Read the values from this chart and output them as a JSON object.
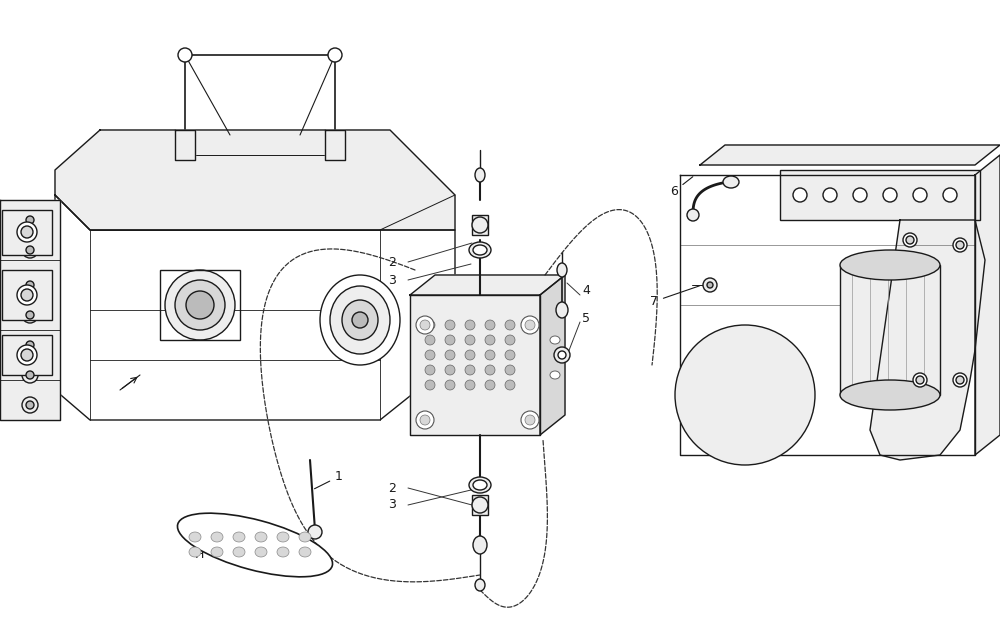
{
  "background_color": "#ffffff",
  "line_color": "#1a1a1a",
  "line_width": 1.0,
  "label_fontsize": 9,
  "figsize": [
    10.0,
    6.2
  ],
  "dpi": 100,
  "dashed_color": "#333333",
  "gray_fill": "#d8d8d8",
  "light_gray": "#eeeeee",
  "mid_gray": "#bbbbbb"
}
